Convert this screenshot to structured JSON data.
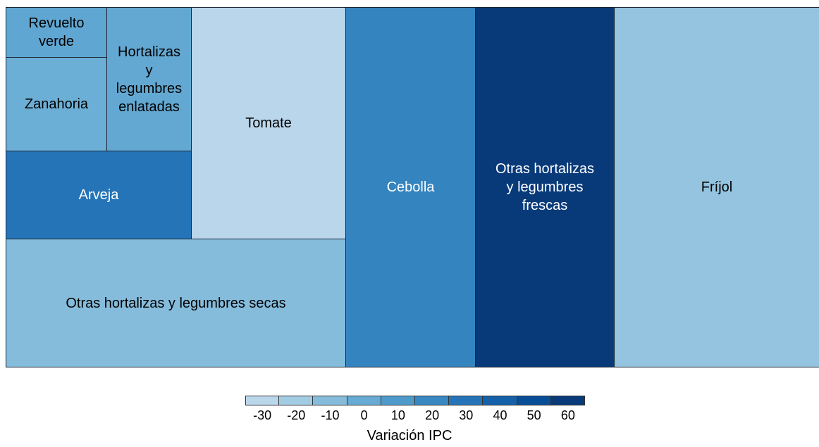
{
  "chart_data": {
    "type": "treemap",
    "categories": [
      "Fríjol",
      "Otras hortalizas\ny legumbres\nfrescas",
      "Cebolla",
      "Otras hortalizas y legumbres secas",
      "Tomate",
      "Arveja",
      "Hortalizas\ny\nlegumbres\nenlatadas",
      "Zanahoria",
      "Revuelto\nverde"
    ],
    "values": [
      148701,
      100667,
      94024,
      87724,
      72051,
      32875,
      24480,
      19019,
      10153
    ],
    "color_values": [
      -15,
      60,
      22,
      -10,
      -30,
      30,
      2,
      -2,
      3
    ],
    "colorscale": [
      "#c6dbef",
      "#9ecae1",
      "#6baed6",
      "#4292c6",
      "#2171b5",
      "#08519c",
      "#08306b"
    ],
    "clim": [
      -35,
      65
    ],
    "colorticks": [
      -30,
      -20,
      -10,
      0,
      10,
      20,
      30,
      40,
      50,
      60
    ],
    "legend_title": "Variación IPC"
  }
}
